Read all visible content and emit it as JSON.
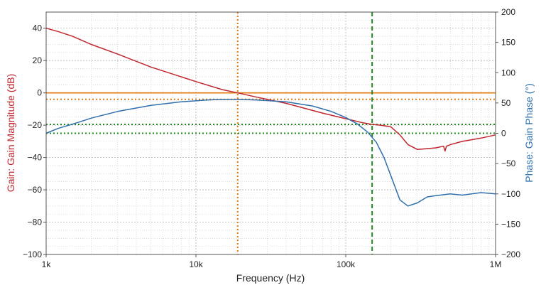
{
  "colors": {
    "gain": "#c0262d",
    "phase": "#2f6fad",
    "crossover": "#e07a10",
    "margin": "#1f8a1f",
    "grid": "#c8c8c8"
  },
  "chart_data": {
    "type": "line",
    "xlabel": "Frequency (Hz)",
    "ylabel_left": "Gain: Gain Magnitude (dB)",
    "ylabel_right": "Phase: Gain Phase (°)",
    "x_scale": "log",
    "xlim": [
      1000,
      1000000
    ],
    "ylim_left": [
      -100,
      50
    ],
    "ylim_right": [
      -200,
      200
    ],
    "x_ticks": [
      {
        "value": 1000,
        "label": "1k"
      },
      {
        "value": 10000,
        "label": "10k"
      },
      {
        "value": 100000,
        "label": "100k"
      },
      {
        "value": 1000000,
        "label": "1M"
      }
    ],
    "y_ticks_left": [
      40,
      20,
      0,
      -20,
      -40,
      -60,
      -80,
      -100
    ],
    "y_ticks_right": [
      200,
      150,
      100,
      50,
      0,
      -50,
      -100,
      -150,
      -200
    ],
    "grid": true,
    "series": [
      {
        "name": "Gain",
        "axis": "left",
        "x": [
          1000,
          1200,
          1500,
          2000,
          3000,
          5000,
          10000,
          15000,
          19000,
          25000,
          40000,
          70000,
          100000,
          130000,
          150000,
          170000,
          200000,
          230000,
          260000,
          300000,
          350000,
          400000,
          450000,
          460000,
          470000,
          500000,
          600000,
          800000,
          1000000
        ],
        "y": [
          40,
          38,
          35,
          30,
          24,
          16,
          7,
          2,
          0,
          -2.5,
          -6.5,
          -12.5,
          -16,
          -18.5,
          -19.5,
          -20,
          -21,
          -26,
          -32,
          -35,
          -34.5,
          -34,
          -33,
          -36,
          -33,
          -32,
          -30,
          -28,
          -26
        ]
      },
      {
        "name": "Phase",
        "axis": "right",
        "x": [
          1000,
          1200,
          1500,
          2000,
          3000,
          5000,
          8000,
          12000,
          15000,
          19000,
          25000,
          40000,
          60000,
          80000,
          100000,
          120000,
          140000,
          160000,
          180000,
          200000,
          230000,
          260000,
          300000,
          350000,
          400000,
          500000,
          600000,
          800000,
          1000000
        ],
        "y": [
          0,
          8,
          15,
          25,
          36,
          46,
          52,
          55,
          56,
          56,
          55,
          52,
          45,
          36,
          26,
          15,
          2,
          -15,
          -40,
          -70,
          -110,
          -120,
          -115,
          -105,
          -103,
          -100,
          -102,
          -98,
          -100
        ]
      }
    ],
    "reference_lines": [
      {
        "orientation": "vertical",
        "x": 19000,
        "color_key": "crossover",
        "style": "dotted"
      },
      {
        "orientation": "horizontal",
        "axis": "left",
        "y": 0,
        "color_key": "crossover",
        "style": "solid"
      },
      {
        "orientation": "horizontal",
        "axis": "right",
        "y": 56,
        "color_key": "crossover",
        "style": "dotted"
      },
      {
        "orientation": "vertical",
        "x": 150000,
        "color_key": "margin",
        "style": "dashed"
      },
      {
        "orientation": "horizontal",
        "axis": "left",
        "y": -19.5,
        "color_key": "margin",
        "style": "dotted"
      },
      {
        "orientation": "horizontal",
        "axis": "right",
        "y": 0,
        "color_key": "margin",
        "style": "dotted"
      }
    ]
  }
}
